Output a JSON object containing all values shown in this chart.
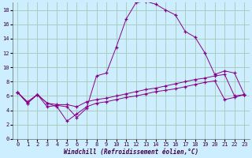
{
  "xlabel": "Windchill (Refroidissement éolien,°C)",
  "bg_color": "#cceeff",
  "grid_color": "#aaccbb",
  "line_color": "#880088",
  "xlim": [
    -0.5,
    23.5
  ],
  "ylim": [
    0,
    19
  ],
  "xticks": [
    0,
    1,
    2,
    3,
    4,
    5,
    6,
    7,
    8,
    9,
    10,
    11,
    12,
    13,
    14,
    15,
    16,
    17,
    18,
    19,
    20,
    21,
    22,
    23
  ],
  "yticks": [
    0,
    2,
    4,
    6,
    8,
    10,
    12,
    14,
    16,
    18
  ],
  "line1_x": [
    0,
    1,
    2,
    3,
    4,
    5,
    6,
    7,
    8,
    9,
    10,
    11,
    12,
    13,
    14,
    15,
    16,
    17,
    18,
    19,
    20,
    21,
    22,
    23
  ],
  "line1_y": [
    6.5,
    5.0,
    6.2,
    4.5,
    4.7,
    4.5,
    3.0,
    4.3,
    8.8,
    9.2,
    12.8,
    16.7,
    19.0,
    19.2,
    18.8,
    18.0,
    17.3,
    15.0,
    14.2,
    12.0,
    9.0,
    9.5,
    9.2,
    6.2
  ],
  "line2_x": [
    0,
    1,
    2,
    3,
    4,
    5,
    6,
    7,
    8,
    9,
    10,
    11,
    12,
    13,
    14,
    15,
    16,
    17,
    18,
    19,
    20,
    21,
    22,
    23
  ],
  "line2_y": [
    6.5,
    5.2,
    6.2,
    5.0,
    4.8,
    4.8,
    4.5,
    5.2,
    5.5,
    5.7,
    6.0,
    6.3,
    6.6,
    6.9,
    7.1,
    7.4,
    7.7,
    8.0,
    8.3,
    8.5,
    8.8,
    9.0,
    6.0,
    6.2
  ],
  "line3_x": [
    0,
    1,
    2,
    3,
    4,
    5,
    6,
    7,
    8,
    9,
    10,
    11,
    12,
    13,
    14,
    15,
    16,
    17,
    18,
    19,
    20,
    21,
    22,
    23
  ],
  "line3_y": [
    6.5,
    5.0,
    6.2,
    5.0,
    4.5,
    2.5,
    3.5,
    4.5,
    5.0,
    5.2,
    5.5,
    5.8,
    6.0,
    6.3,
    6.6,
    6.8,
    7.0,
    7.3,
    7.6,
    7.9,
    8.1,
    5.5,
    5.8,
    6.2
  ]
}
